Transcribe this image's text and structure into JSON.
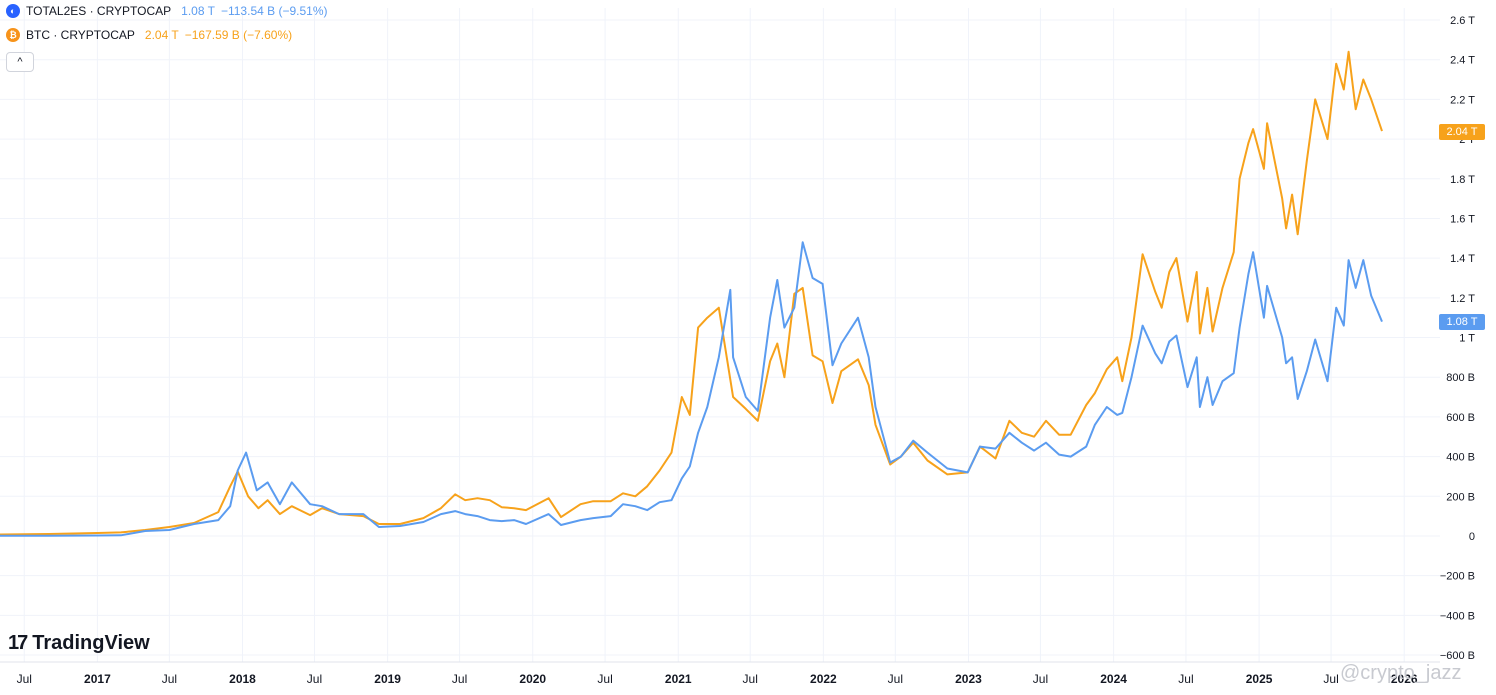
{
  "legend": {
    "total2es": {
      "symbol": "TOTAL2ES · CRYPTOCAP",
      "value": "1.08 T",
      "change": "−113.54 B (−9.51%)",
      "color": "#5b9cf0"
    },
    "btc": {
      "symbol": "BTC · CRYPTOCAP",
      "value": "2.04 T",
      "change": "−167.59 B (−7.60%)",
      "color": "#f7a21b",
      "icon": "₿"
    },
    "collapse_icon": "chevron-up-icon",
    "collapse_glyph": "^"
  },
  "branding": {
    "logo_mark": "17",
    "logo_text": "TradingView",
    "watermark": "@crypto_jazz"
  },
  "price_labels": {
    "btc_last": "2.04 T",
    "total2es_last": "1.08 T"
  },
  "chart_data": {
    "type": "line",
    "title": "",
    "xlabel": "",
    "ylabel": "",
    "ylim": [
      -600,
      2600
    ],
    "y_unit": "billions USD",
    "grid": true,
    "y_axis": "right",
    "y_ticks": [
      {
        "value": 2600,
        "label": "2.6 T"
      },
      {
        "value": 2400,
        "label": "2.4 T"
      },
      {
        "value": 2200,
        "label": "2.2 T"
      },
      {
        "value": 2000,
        "label": "2 T"
      },
      {
        "value": 1800,
        "label": "1.8 T"
      },
      {
        "value": 1600,
        "label": "1.6 T"
      },
      {
        "value": 1400,
        "label": "1.4 T"
      },
      {
        "value": 1200,
        "label": "1.2 T"
      },
      {
        "value": 1000,
        "label": "1 T"
      },
      {
        "value": 800,
        "label": "800 B"
      },
      {
        "value": 600,
        "label": "600 B"
      },
      {
        "value": 400,
        "label": "400 B"
      },
      {
        "value": 200,
        "label": "200 B"
      },
      {
        "value": 0,
        "label": "0"
      },
      {
        "value": -200,
        "label": "−200 B"
      },
      {
        "value": -400,
        "label": "−400 B"
      },
      {
        "value": -600,
        "label": "−600 B"
      }
    ],
    "x_range": [
      "2016-05-01",
      "2026-04-01"
    ],
    "x_ticks": [
      {
        "date": "2016-07-01",
        "label": "Jul",
        "bold": false
      },
      {
        "date": "2017-01-01",
        "label": "2017",
        "bold": true
      },
      {
        "date": "2017-07-01",
        "label": "Jul",
        "bold": false
      },
      {
        "date": "2018-01-01",
        "label": "2018",
        "bold": true
      },
      {
        "date": "2018-07-01",
        "label": "Jul",
        "bold": false
      },
      {
        "date": "2019-01-01",
        "label": "2019",
        "bold": true
      },
      {
        "date": "2019-07-01",
        "label": "Jul",
        "bold": false
      },
      {
        "date": "2020-01-01",
        "label": "2020",
        "bold": true
      },
      {
        "date": "2020-07-01",
        "label": "Jul",
        "bold": false
      },
      {
        "date": "2021-01-01",
        "label": "2021",
        "bold": true
      },
      {
        "date": "2021-07-01",
        "label": "Jul",
        "bold": false
      },
      {
        "date": "2022-01-01",
        "label": "2022",
        "bold": true
      },
      {
        "date": "2022-07-01",
        "label": "Jul",
        "bold": false
      },
      {
        "date": "2023-01-01",
        "label": "2023",
        "bold": true
      },
      {
        "date": "2023-07-01",
        "label": "Jul",
        "bold": false
      },
      {
        "date": "2024-01-01",
        "label": "2024",
        "bold": true
      },
      {
        "date": "2024-07-01",
        "label": "Jul",
        "bold": false
      },
      {
        "date": "2025-01-01",
        "label": "2025",
        "bold": true
      },
      {
        "date": "2025-07-01",
        "label": "Jul",
        "bold": false
      },
      {
        "date": "2026-01-01",
        "label": "2026",
        "bold": true
      }
    ],
    "series": [
      {
        "name": "BTC · CRYPTOCAP",
        "color": "#f7a21b",
        "points": [
          [
            "2016-05-01",
            7
          ],
          [
            "2016-09-01",
            10
          ],
          [
            "2017-01-01",
            15
          ],
          [
            "2017-03-01",
            18
          ],
          [
            "2017-05-01",
            30
          ],
          [
            "2017-07-01",
            45
          ],
          [
            "2017-09-01",
            65
          ],
          [
            "2017-11-01",
            120
          ],
          [
            "2017-12-01",
            250
          ],
          [
            "2017-12-20",
            325
          ],
          [
            "2018-01-15",
            200
          ],
          [
            "2018-02-10",
            140
          ],
          [
            "2018-03-05",
            180
          ],
          [
            "2018-04-05",
            110
          ],
          [
            "2018-05-05",
            150
          ],
          [
            "2018-06-20",
            105
          ],
          [
            "2018-07-20",
            140
          ],
          [
            "2018-09-01",
            110
          ],
          [
            "2018-11-01",
            100
          ],
          [
            "2018-12-10",
            60
          ],
          [
            "2019-02-01",
            60
          ],
          [
            "2019-04-01",
            90
          ],
          [
            "2019-05-15",
            140
          ],
          [
            "2019-06-20",
            210
          ],
          [
            "2019-07-15",
            180
          ],
          [
            "2019-08-15",
            190
          ],
          [
            "2019-09-15",
            180
          ],
          [
            "2019-10-15",
            145
          ],
          [
            "2019-11-15",
            140
          ],
          [
            "2019-12-15",
            130
          ],
          [
            "2020-02-10",
            190
          ],
          [
            "2020-03-12",
            95
          ],
          [
            "2020-04-30",
            160
          ],
          [
            "2020-06-01",
            175
          ],
          [
            "2020-07-15",
            175
          ],
          [
            "2020-08-15",
            215
          ],
          [
            "2020-09-15",
            200
          ],
          [
            "2020-10-15",
            250
          ],
          [
            "2020-11-15",
            330
          ],
          [
            "2020-12-15",
            420
          ],
          [
            "2021-01-10",
            700
          ],
          [
            "2021-01-30",
            610
          ],
          [
            "2021-02-20",
            1050
          ],
          [
            "2021-03-15",
            1100
          ],
          [
            "2021-04-13",
            1150
          ],
          [
            "2021-05-19",
            700
          ],
          [
            "2021-06-20",
            640
          ],
          [
            "2021-07-20",
            580
          ],
          [
            "2021-08-20",
            880
          ],
          [
            "2021-09-07",
            970
          ],
          [
            "2021-09-25",
            800
          ],
          [
            "2021-10-20",
            1220
          ],
          [
            "2021-11-10",
            1250
          ],
          [
            "2021-12-05",
            910
          ],
          [
            "2021-12-30",
            880
          ],
          [
            "2022-01-24",
            670
          ],
          [
            "2022-02-15",
            830
          ],
          [
            "2022-03-29",
            890
          ],
          [
            "2022-04-25",
            760
          ],
          [
            "2022-05-12",
            560
          ],
          [
            "2022-06-18",
            360
          ],
          [
            "2022-07-15",
            400
          ],
          [
            "2022-08-15",
            470
          ],
          [
            "2022-09-20",
            380
          ],
          [
            "2022-11-09",
            310
          ],
          [
            "2022-12-30",
            320
          ],
          [
            "2023-01-30",
            450
          ],
          [
            "2023-03-10",
            390
          ],
          [
            "2023-04-14",
            580
          ],
          [
            "2023-05-15",
            520
          ],
          [
            "2023-06-15",
            500
          ],
          [
            "2023-07-15",
            580
          ],
          [
            "2023-08-17",
            510
          ],
          [
            "2023-09-15",
            510
          ],
          [
            "2023-10-24",
            660
          ],
          [
            "2023-11-15",
            720
          ],
          [
            "2023-12-15",
            840
          ],
          [
            "2024-01-10",
            900
          ],
          [
            "2024-01-23",
            780
          ],
          [
            "2024-02-15",
            1000
          ],
          [
            "2024-03-14",
            1420
          ],
          [
            "2024-04-15",
            1230
          ],
          [
            "2024-05-01",
            1150
          ],
          [
            "2024-05-20",
            1330
          ],
          [
            "2024-06-07",
            1400
          ],
          [
            "2024-07-05",
            1080
          ],
          [
            "2024-07-28",
            1330
          ],
          [
            "2024-08-05",
            1020
          ],
          [
            "2024-08-24",
            1250
          ],
          [
            "2024-09-06",
            1030
          ],
          [
            "2024-10-01",
            1250
          ],
          [
            "2024-10-29",
            1430
          ],
          [
            "2024-11-13",
            1800
          ],
          [
            "2024-12-05",
            1980
          ],
          [
            "2024-12-17",
            2050
          ],
          [
            "2025-01-13",
            1850
          ],
          [
            "2025-01-21",
            2080
          ],
          [
            "2025-02-28",
            1700
          ],
          [
            "2025-03-10",
            1550
          ],
          [
            "2025-03-25",
            1720
          ],
          [
            "2025-04-08",
            1520
          ],
          [
            "2025-05-01",
            1890
          ],
          [
            "2025-05-22",
            2200
          ],
          [
            "2025-06-22",
            2000
          ],
          [
            "2025-07-14",
            2380
          ],
          [
            "2025-08-02",
            2250
          ],
          [
            "2025-08-14",
            2440
          ],
          [
            "2025-09-01",
            2150
          ],
          [
            "2025-09-20",
            2300
          ],
          [
            "2025-10-10",
            2200
          ],
          [
            "2025-11-06",
            2040
          ]
        ]
      },
      {
        "name": "TOTAL2ES · CRYPTOCAP",
        "color": "#5b9cf0",
        "points": [
          [
            "2016-05-01",
            1
          ],
          [
            "2016-09-01",
            1
          ],
          [
            "2017-01-01",
            2
          ],
          [
            "2017-03-01",
            3
          ],
          [
            "2017-05-01",
            25
          ],
          [
            "2017-07-01",
            30
          ],
          [
            "2017-09-01",
            60
          ],
          [
            "2017-11-01",
            80
          ],
          [
            "2017-12-01",
            150
          ],
          [
            "2017-12-20",
            330
          ],
          [
            "2018-01-10",
            420
          ],
          [
            "2018-02-06",
            230
          ],
          [
            "2018-03-05",
            270
          ],
          [
            "2018-04-05",
            160
          ],
          [
            "2018-05-05",
            270
          ],
          [
            "2018-06-20",
            160
          ],
          [
            "2018-07-20",
            150
          ],
          [
            "2018-09-01",
            110
          ],
          [
            "2018-11-01",
            110
          ],
          [
            "2018-12-10",
            45
          ],
          [
            "2019-02-01",
            50
          ],
          [
            "2019-04-01",
            70
          ],
          [
            "2019-05-15",
            110
          ],
          [
            "2019-06-20",
            125
          ],
          [
            "2019-07-15",
            110
          ],
          [
            "2019-08-15",
            100
          ],
          [
            "2019-09-15",
            80
          ],
          [
            "2019-10-15",
            75
          ],
          [
            "2019-11-15",
            80
          ],
          [
            "2019-12-15",
            60
          ],
          [
            "2020-02-10",
            110
          ],
          [
            "2020-03-12",
            55
          ],
          [
            "2020-04-30",
            80
          ],
          [
            "2020-06-01",
            90
          ],
          [
            "2020-07-15",
            100
          ],
          [
            "2020-08-15",
            160
          ],
          [
            "2020-09-15",
            150
          ],
          [
            "2020-10-15",
            130
          ],
          [
            "2020-11-15",
            170
          ],
          [
            "2020-12-15",
            180
          ],
          [
            "2021-01-10",
            290
          ],
          [
            "2021-01-30",
            350
          ],
          [
            "2021-02-20",
            520
          ],
          [
            "2021-03-15",
            650
          ],
          [
            "2021-04-13",
            900
          ],
          [
            "2021-05-12",
            1240
          ],
          [
            "2021-05-19",
            900
          ],
          [
            "2021-06-20",
            700
          ],
          [
            "2021-07-20",
            630
          ],
          [
            "2021-08-20",
            1100
          ],
          [
            "2021-09-07",
            1290
          ],
          [
            "2021-09-25",
            1050
          ],
          [
            "2021-10-20",
            1150
          ],
          [
            "2021-11-10",
            1480
          ],
          [
            "2021-12-05",
            1300
          ],
          [
            "2021-12-30",
            1270
          ],
          [
            "2022-01-24",
            860
          ],
          [
            "2022-02-15",
            970
          ],
          [
            "2022-03-29",
            1100
          ],
          [
            "2022-04-25",
            900
          ],
          [
            "2022-05-12",
            650
          ],
          [
            "2022-06-18",
            370
          ],
          [
            "2022-07-15",
            400
          ],
          [
            "2022-08-15",
            480
          ],
          [
            "2022-09-20",
            420
          ],
          [
            "2022-11-09",
            340
          ],
          [
            "2022-12-30",
            320
          ],
          [
            "2023-01-30",
            450
          ],
          [
            "2023-03-10",
            440
          ],
          [
            "2023-04-14",
            520
          ],
          [
            "2023-05-15",
            470
          ],
          [
            "2023-06-15",
            430
          ],
          [
            "2023-07-15",
            470
          ],
          [
            "2023-08-17",
            410
          ],
          [
            "2023-09-15",
            400
          ],
          [
            "2023-10-24",
            450
          ],
          [
            "2023-11-15",
            560
          ],
          [
            "2023-12-15",
            650
          ],
          [
            "2024-01-10",
            610
          ],
          [
            "2024-01-23",
            620
          ],
          [
            "2024-02-15",
            800
          ],
          [
            "2024-03-14",
            1060
          ],
          [
            "2024-04-15",
            920
          ],
          [
            "2024-05-01",
            870
          ],
          [
            "2024-05-20",
            980
          ],
          [
            "2024-06-07",
            1010
          ],
          [
            "2024-07-05",
            750
          ],
          [
            "2024-07-28",
            900
          ],
          [
            "2024-08-05",
            650
          ],
          [
            "2024-08-24",
            800
          ],
          [
            "2024-09-06",
            660
          ],
          [
            "2024-10-01",
            780
          ],
          [
            "2024-10-29",
            820
          ],
          [
            "2024-11-13",
            1050
          ],
          [
            "2024-12-05",
            1320
          ],
          [
            "2024-12-17",
            1430
          ],
          [
            "2025-01-13",
            1100
          ],
          [
            "2025-01-21",
            1260
          ],
          [
            "2025-02-28",
            1000
          ],
          [
            "2025-03-10",
            870
          ],
          [
            "2025-03-25",
            900
          ],
          [
            "2025-04-08",
            690
          ],
          [
            "2025-05-01",
            830
          ],
          [
            "2025-05-22",
            990
          ],
          [
            "2025-06-22",
            780
          ],
          [
            "2025-07-14",
            1150
          ],
          [
            "2025-08-02",
            1060
          ],
          [
            "2025-08-14",
            1390
          ],
          [
            "2025-09-01",
            1250
          ],
          [
            "2025-09-20",
            1390
          ],
          [
            "2025-10-10",
            1210
          ],
          [
            "2025-11-06",
            1080
          ]
        ]
      }
    ]
  }
}
